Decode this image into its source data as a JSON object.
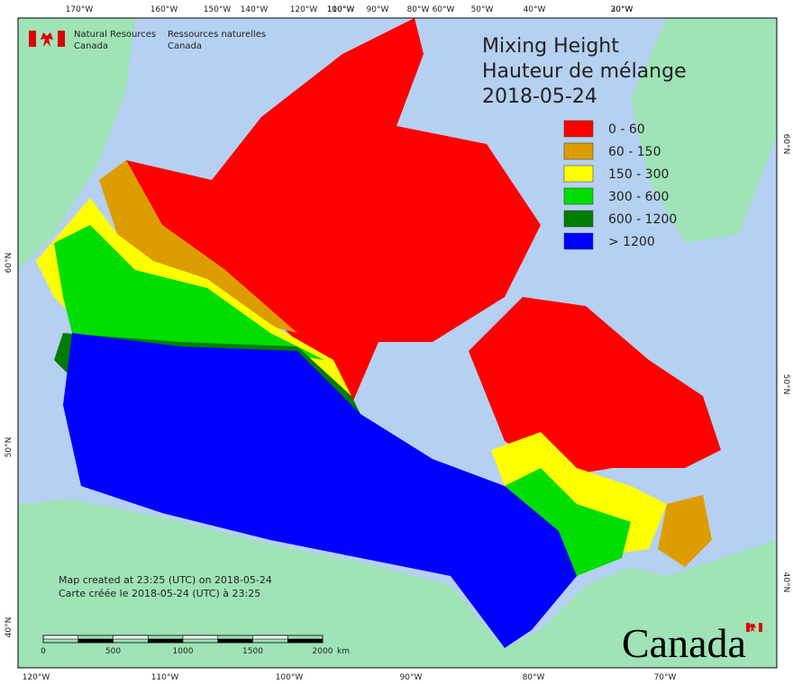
{
  "agency_en": [
    "Natural Resources",
    "Canada"
  ],
  "agency_fr": [
    "Ressources naturelles",
    "Canada"
  ],
  "title": [
    "Mixing Height",
    "Hauteur de mélange",
    "2018-05-24"
  ],
  "legend": [
    {
      "label": "0 - 60",
      "color": "#ff0000"
    },
    {
      "label": "60 - 150",
      "color": "#dd9d00"
    },
    {
      "label": "150 - 300",
      "color": "#ffff00"
    },
    {
      "label": "300 - 600",
      "color": "#00dd00"
    },
    {
      "label": "600 - 1200",
      "color": "#007d00"
    },
    {
      "label": "> 1200",
      "color": "#0000ff"
    }
  ],
  "graticule": {
    "top": [
      "170°W",
      "160°W",
      "150°W",
      "140°W",
      "120°W",
      "110°W",
      "100°W",
      "90°W",
      "80°W",
      "60°W",
      "50°W",
      "40°W",
      "30°W",
      "20°W"
    ],
    "bottom": [
      "120°W",
      "110°W",
      "100°W",
      "90°W",
      "80°W",
      "70°W"
    ],
    "left": [
      "60°N",
      "50°N",
      "40°N"
    ],
    "right": [
      "60°N",
      "50°N",
      "40°N"
    ]
  },
  "notes": [
    "Map created at 23:25 (UTC) on 2018-05-24",
    "Carte créée le 2018-05-24 (UTC) à 23:25"
  ],
  "scale_bar": {
    "labels": [
      "0",
      "500",
      "1000",
      "1500",
      "2000"
    ],
    "unit": "km"
  },
  "wordmark": "Canada"
}
